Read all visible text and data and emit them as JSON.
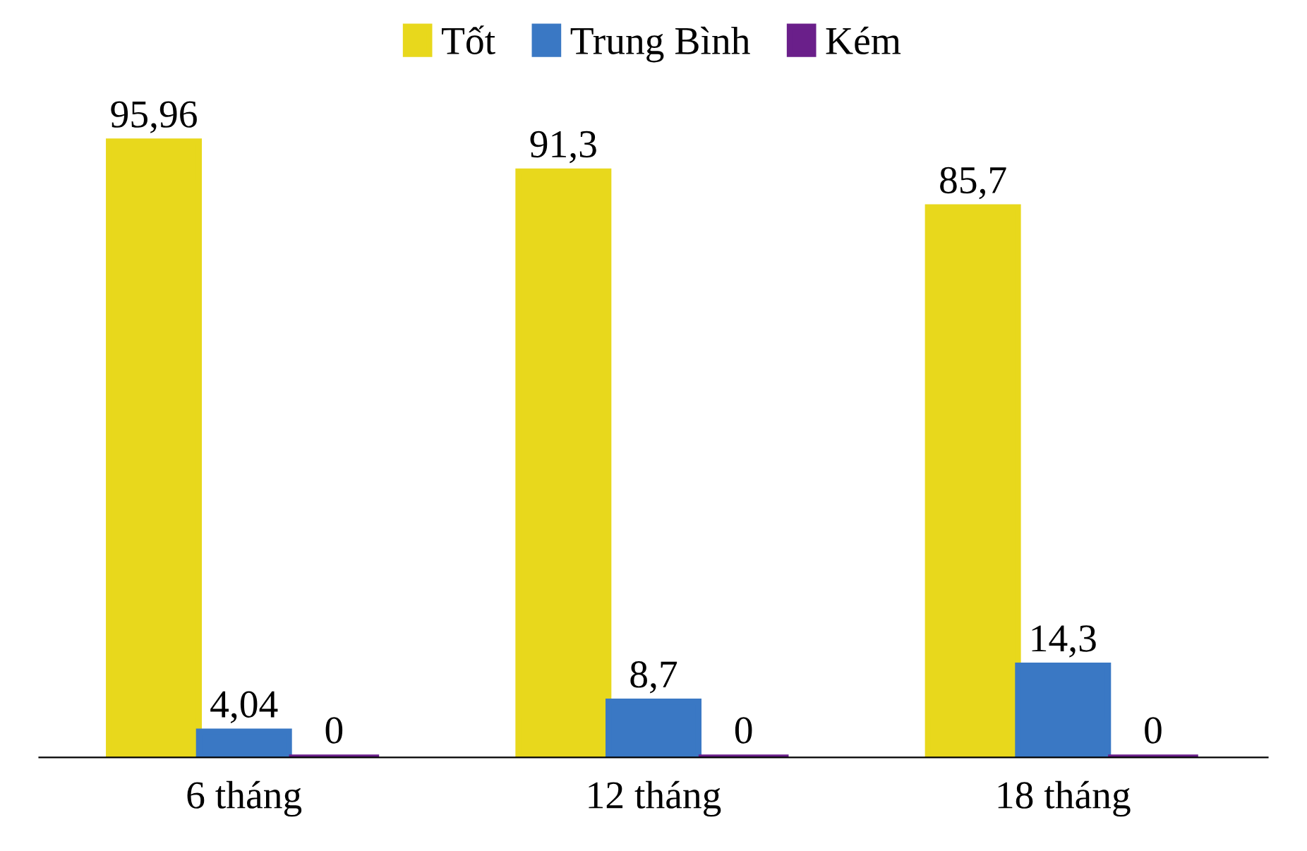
{
  "chart_data": {
    "type": "bar",
    "categories": [
      "6 tháng",
      "12 tháng",
      "18 tháng"
    ],
    "series": [
      {
        "name": "Tốt",
        "color": "#e8d81c",
        "values": [
          95.96,
          91.3,
          85.7
        ],
        "value_labels": [
          "95,96",
          "91,3",
          "85,7"
        ]
      },
      {
        "name": "Trung Bình",
        "color": "#3a78c4",
        "values": [
          4.04,
          8.7,
          14.3
        ],
        "value_labels": [
          "4,04",
          "8,7",
          "14,3"
        ]
      },
      {
        "name": "Kém",
        "color": "#6a1f8a",
        "values": [
          0,
          0,
          0
        ],
        "value_labels": [
          "0",
          "0",
          "0"
        ]
      }
    ],
    "legend": "top",
    "grid": false
  }
}
